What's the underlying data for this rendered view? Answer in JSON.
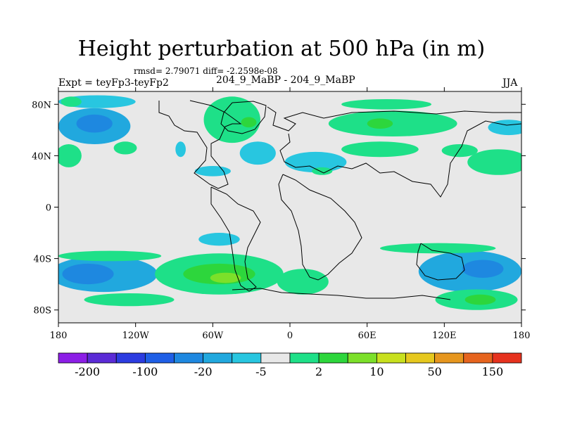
{
  "header": {
    "title": "Height perturbation at 500 hPa (in m)",
    "stats": "rmsd= 2.79071 diff= -2.2598e-08",
    "left_label": "Expt = teyFp3-teyFp2",
    "center_label": "204_9_MaBP - 204_9_MaBP",
    "right_label": "JJA"
  },
  "chart_data": {
    "type": "heatmap",
    "projection": "cylindrical equidistant",
    "xlim": [
      -180,
      180
    ],
    "ylim": [
      -90,
      90
    ],
    "x_ticks": [
      {
        "value": -180,
        "label": "180"
      },
      {
        "value": -120,
        "label": "120W"
      },
      {
        "value": -60,
        "label": "60W"
      },
      {
        "value": 0,
        "label": "0"
      },
      {
        "value": 60,
        "label": "60E"
      },
      {
        "value": 120,
        "label": "120E"
      },
      {
        "value": 180,
        "label": "180"
      }
    ],
    "y_ticks": [
      {
        "value": 80,
        "label": "80N"
      },
      {
        "value": 40,
        "label": "40N"
      },
      {
        "value": 0,
        "label": "0"
      },
      {
        "value": -40,
        "label": "40S"
      },
      {
        "value": -80,
        "label": "80S"
      }
    ],
    "background_color": "#e8e8e8",
    "colorbar": {
      "levels": [
        -200,
        -150,
        -100,
        -50,
        -20,
        -10,
        -5,
        -2,
        2,
        5,
        10,
        20,
        50,
        100,
        150,
        200
      ],
      "colors": [
        "#8c1ee6",
        "#5b2bd6",
        "#2c3ce0",
        "#1f5fe6",
        "#1e88e0",
        "#21a8de",
        "#28c6e0",
        "#e8e8e8",
        "#1ee088",
        "#2dd63c",
        "#7ce02a",
        "#c8e01e",
        "#e6c81e",
        "#e6961e",
        "#e6641e",
        "#e6321e"
      ],
      "labels": [
        {
          "index": 1,
          "text": "-200"
        },
        {
          "index": 3,
          "text": "-100"
        },
        {
          "index": 5,
          "text": "-20"
        },
        {
          "index": 7,
          "text": "-5"
        },
        {
          "index": 9,
          "text": "2"
        },
        {
          "index": 11,
          "text": "10"
        },
        {
          "index": 13,
          "text": "50"
        },
        {
          "index": 15,
          "text": "150"
        }
      ]
    },
    "regions": [
      {
        "name": "north-pacific-low",
        "lon": -152,
        "lat": 63,
        "rlon": 28,
        "rlat": 14,
        "color": "#21a8de"
      },
      {
        "name": "north-pacific-low-core",
        "lon": -152,
        "lat": 65,
        "rlon": 14,
        "rlat": 7,
        "color": "#1e88e0"
      },
      {
        "name": "arctic-low-west",
        "lon": -150,
        "lat": 82,
        "rlon": 30,
        "rlat": 5,
        "color": "#28c6e0"
      },
      {
        "name": "arctic-high-west",
        "lon": -170,
        "lat": 82,
        "rlon": 8,
        "rlat": 4,
        "color": "#1ee088"
      },
      {
        "name": "pacific-high-40n",
        "lon": -172,
        "lat": 40,
        "rlon": 10,
        "rlat": 9,
        "color": "#1ee088"
      },
      {
        "name": "pacific-high-45n",
        "lon": -128,
        "lat": 46,
        "rlon": 9,
        "rlat": 5,
        "color": "#1ee088"
      },
      {
        "name": "greenland-high",
        "lon": -45,
        "lat": 68,
        "rlon": 22,
        "rlat": 18,
        "color": "#1ee088"
      },
      {
        "name": "greenland-high-core",
        "lon": -32,
        "lat": 66,
        "rlon": 6,
        "rlat": 4,
        "color": "#2dd63c"
      },
      {
        "name": "atlantic-low",
        "lon": -25,
        "lat": 42,
        "rlon": 14,
        "rlat": 9,
        "color": "#28c6e0"
      },
      {
        "name": "n-america-low",
        "lon": -85,
        "lat": 45,
        "rlon": 4,
        "rlat": 6,
        "color": "#28c6e0"
      },
      {
        "name": "caribbean-low",
        "lon": -60,
        "lat": 28,
        "rlon": 14,
        "rlat": 4,
        "color": "#28c6e0"
      },
      {
        "name": "europe-low",
        "lon": 20,
        "lat": 35,
        "rlon": 24,
        "rlat": 8,
        "color": "#28c6e0"
      },
      {
        "name": "med-high",
        "lon": 25,
        "lat": 28,
        "rlon": 8,
        "rlat": 3,
        "color": "#1ee088"
      },
      {
        "name": "eurasia-high",
        "lon": 80,
        "lat": 65,
        "rlon": 50,
        "rlat": 10,
        "color": "#1ee088"
      },
      {
        "name": "eurasia-high-core",
        "lon": 70,
        "lat": 65,
        "rlon": 10,
        "rlat": 4,
        "color": "#2dd63c"
      },
      {
        "name": "arctic-high-east",
        "lon": 75,
        "lat": 80,
        "rlon": 35,
        "rlat": 4,
        "color": "#1ee088"
      },
      {
        "name": "siberia-low",
        "lon": 170,
        "lat": 62,
        "rlon": 16,
        "rlat": 6,
        "color": "#28c6e0"
      },
      {
        "name": "asia-high-40n",
        "lon": 70,
        "lat": 45,
        "rlon": 30,
        "rlat": 6,
        "color": "#1ee088"
      },
      {
        "name": "nw-pacific-high",
        "lon": 162,
        "lat": 35,
        "rlon": 24,
        "rlat": 10,
        "color": "#1ee088"
      },
      {
        "name": "east-asia-high",
        "lon": 132,
        "lat": 44,
        "rlon": 14,
        "rlat": 5,
        "color": "#1ee088"
      },
      {
        "name": "south-atlantic-low",
        "lon": -55,
        "lat": -25,
        "rlon": 16,
        "rlat": 5,
        "color": "#28c6e0"
      },
      {
        "name": "south-low-west",
        "lon": -145,
        "lat": -52,
        "rlon": 42,
        "rlat": 14,
        "color": "#21a8de"
      },
      {
        "name": "south-low-west-core",
        "lon": -157,
        "lat": -52,
        "rlon": 20,
        "rlat": 8,
        "color": "#1e88e0"
      },
      {
        "name": "south-high-west",
        "lon": -140,
        "lat": -38,
        "rlon": 40,
        "rlat": 4,
        "color": "#1ee088"
      },
      {
        "name": "south-high-west-lower",
        "lon": -125,
        "lat": -72,
        "rlon": 35,
        "rlat": 5,
        "color": "#1ee088"
      },
      {
        "name": "south-high-center",
        "lon": -55,
        "lat": -52,
        "rlon": 50,
        "rlat": 16,
        "color": "#1ee088"
      },
      {
        "name": "south-high-center-mid",
        "lon": -55,
        "lat": -52,
        "rlon": 28,
        "rlat": 8,
        "color": "#2dd63c"
      },
      {
        "name": "south-high-center-core",
        "lon": -50,
        "lat": -55,
        "rlon": 12,
        "rlat": 4,
        "color": "#7ce02a"
      },
      {
        "name": "south-high-atlantic",
        "lon": 10,
        "lat": -58,
        "rlon": 20,
        "rlat": 10,
        "color": "#1ee088"
      },
      {
        "name": "south-low-east",
        "lon": 140,
        "lat": -50,
        "rlon": 40,
        "rlat": 16,
        "color": "#21a8de"
      },
      {
        "name": "south-low-east-core",
        "lon": 150,
        "lat": -48,
        "rlon": 16,
        "rlat": 7,
        "color": "#1e88e0"
      },
      {
        "name": "south-high-east-top",
        "lon": 115,
        "lat": -32,
        "rlon": 45,
        "rlat": 4,
        "color": "#1ee088"
      },
      {
        "name": "south-high-east-bottom",
        "lon": 145,
        "lat": -72,
        "rlon": 32,
        "rlat": 8,
        "color": "#1ee088"
      },
      {
        "name": "south-high-east-core",
        "lon": 148,
        "lat": -72,
        "rlon": 12,
        "rlat": 4,
        "color": "#2dd63c"
      }
    ]
  }
}
